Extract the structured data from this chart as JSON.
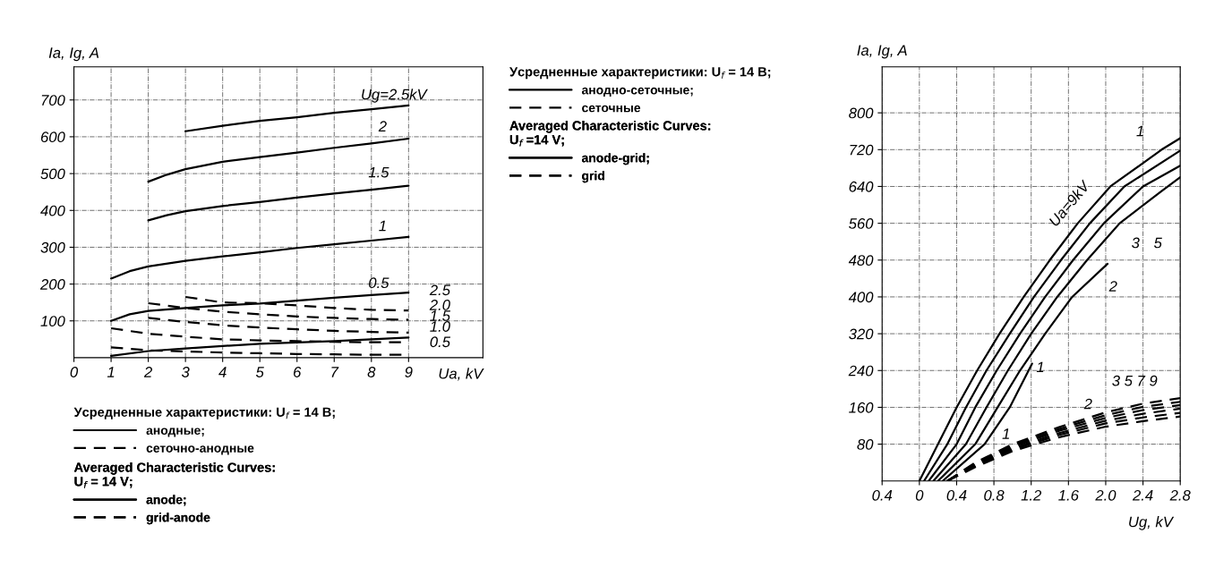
{
  "chart_data": [
    {
      "type": "line",
      "xlabel": "Ua, kV",
      "ylabel": "Ia, Ig, A",
      "xlim": [
        0,
        11
      ],
      "ylim": [
        0,
        790
      ],
      "xticks": [
        0,
        1,
        2,
        3,
        4,
        5,
        6,
        7,
        8,
        9
      ],
      "yticks": [
        100,
        200,
        300,
        400,
        500,
        600,
        700
      ],
      "grid": true,
      "legend": "bottom",
      "legend_title": "Усредненные характеристики: U$_{f}$ = 14 B;",
      "series": [
        {
          "name": "анодные;",
          "color": "#000000",
          "line_style": "solid",
          "x": [
            3,
            4,
            5,
            6,
            7,
            8,
            9
          ],
          "values": [
            615,
            630,
            643,
            653,
            665,
            675,
            685
          ]
        },
        {
          "name": "anode;",
          "color": "#000000",
          "line_style": "solid",
          "x": [
            2,
            2.5,
            3,
            4,
            5,
            6,
            7,
            8,
            9
          ],
          "values": [
            478,
            497,
            512,
            532,
            545,
            557,
            570,
            582,
            595
          ]
        },
        {
          "color": "#000000",
          "line_style": "solid",
          "x": [
            2,
            2.5,
            3,
            4,
            5,
            6,
            7,
            8,
            9
          ],
          "values": [
            373,
            387,
            398,
            412,
            423,
            435,
            446,
            456,
            467
          ]
        },
        {
          "color": "#000000",
          "line_style": "solid",
          "x": [
            1,
            1.5,
            2,
            3,
            4,
            5,
            6,
            7,
            8,
            9
          ],
          "values": [
            215,
            235,
            248,
            263,
            275,
            286,
            298,
            308,
            318,
            328
          ]
        },
        {
          "color": "#000000",
          "line_style": "solid",
          "x": [
            1,
            1.5,
            2,
            3,
            4,
            5,
            6,
            7,
            8,
            9
          ],
          "values": [
            100,
            118,
            127,
            135,
            142,
            147,
            155,
            163,
            170,
            177
          ]
        },
        {
          "color": "#000000",
          "line_style": "solid",
          "x": [
            1,
            2,
            3,
            5,
            7,
            9
          ],
          "values": [
            5,
            18,
            25,
            38,
            45,
            55
          ]
        },
        {
          "name": "сеточно-анодные",
          "color": "#000000",
          "line_style": "dashed",
          "x": [
            3,
            4,
            5,
            6,
            7,
            8,
            9
          ],
          "values": [
            165,
            150,
            148,
            142,
            135,
            130,
            128
          ]
        },
        {
          "name": "grid-anode",
          "color": "#000000",
          "line_style": "dashed",
          "x": [
            2,
            3,
            4,
            5,
            6,
            7,
            8,
            9
          ],
          "values": [
            148,
            135,
            125,
            118,
            112,
            108,
            105,
            103
          ]
        },
        {
          "color": "#000000",
          "line_style": "dashed",
          "x": [
            2,
            3,
            4,
            5,
            6,
            7,
            8,
            9
          ],
          "values": [
            108,
            97,
            88,
            82,
            77,
            73,
            70,
            68
          ]
        },
        {
          "color": "#000000",
          "line_style": "dashed",
          "x": [
            1,
            2,
            3,
            4,
            5,
            6,
            7,
            8,
            9
          ],
          "values": [
            80,
            65,
            57,
            50,
            47,
            45,
            43,
            42,
            42
          ]
        },
        {
          "color": "#000000",
          "line_style": "dashed",
          "x": [
            1,
            2,
            3,
            4,
            5,
            6,
            7,
            8,
            9
          ],
          "values": [
            28,
            20,
            17,
            14,
            12,
            10,
            9,
            8,
            8
          ]
        }
      ],
      "annotations": [
        "Averaged Characteristic Curves:\nU$_{f}$ = 14 V;",
        "Ug=2.5kV",
        "2",
        "1.5",
        "1",
        "0.5",
        "2.5",
        "2.0",
        "1.5",
        "1.0",
        "0.5"
      ]
    },
    {
      "type": "line",
      "xlabel": "Ug, kV",
      "ylabel": "Ia, Ig, A",
      "xlim": [
        -0.4,
        2.8
      ],
      "ylim": [
        0,
        900
      ],
      "xticks": [
        {
          "value": -0.4,
          "label": "0.4"
        },
        0,
        0.4,
        0.8,
        1.2,
        1.6,
        {
          "value": 2.0,
          "label": "2.0"
        },
        2.4,
        2.8
      ],
      "yticks": [
        80,
        160,
        240,
        320,
        400,
        480,
        560,
        640,
        720,
        800
      ],
      "grid": true,
      "legend": "left",
      "legend_title": "Усредненные характеристики: U$_{f}$ = 14 B;",
      "series": [
        {
          "name": "анодно-сеточные;",
          "color": "#000000",
          "line_style": "solid",
          "x": [
            0,
            0.2,
            0.4,
            0.62,
            0.86,
            1.12,
            1.4,
            1.7,
            2.05,
            2.6,
            2.8
          ],
          "values": [
            0,
            80,
            160,
            240,
            320,
            400,
            480,
            560,
            640,
            720,
            745
          ]
        },
        {
          "name": "anode-grid;",
          "color": "#000000",
          "line_style": "solid",
          "x": [
            0.05,
            0.3,
            0.5,
            0.72,
            0.97,
            1.23,
            1.52,
            1.83,
            2.2,
            2.8
          ],
          "values": [
            0,
            80,
            160,
            240,
            320,
            400,
            480,
            560,
            640,
            718
          ]
        },
        {
          "color": "#000000",
          "line_style": "solid",
          "x": [
            0.1,
            0.4,
            0.6,
            0.83,
            1.08,
            1.35,
            1.65,
            1.98,
            2.4,
            2.8
          ],
          "values": [
            0,
            80,
            160,
            240,
            320,
            400,
            480,
            560,
            640,
            685
          ]
        },
        {
          "color": "#000000",
          "line_style": "solid",
          "x": [
            0.15,
            0.5,
            0.72,
            0.95,
            1.2,
            1.48,
            1.8,
            2.15,
            2.6,
            2.8
          ],
          "values": [
            0,
            80,
            160,
            240,
            320,
            400,
            480,
            560,
            630,
            660
          ]
        },
        {
          "color": "#000000",
          "line_style": "solid",
          "x": [
            0.2,
            0.6,
            0.84,
            1.08,
            1.35,
            1.64,
            2.02
          ],
          "values": [
            0,
            80,
            160,
            240,
            320,
            400,
            472
          ]
        },
        {
          "color": "#000000",
          "line_style": "solid",
          "x": [
            0.25,
            0.7,
            0.97,
            1.21
          ],
          "values": [
            0,
            80,
            160,
            255
          ]
        },
        {
          "name": "сеточные",
          "color": "#000000",
          "line_style": "dashed",
          "x": [
            0.3,
            0.6,
            1.0,
            1.5,
            2.0,
            2.4,
            2.8
          ],
          "values": [
            0,
            30,
            65,
            95,
            118,
            130,
            140
          ]
        },
        {
          "name": "grid",
          "color": "#000000",
          "line_style": "dashed",
          "x": [
            0.3,
            0.6,
            1.0,
            1.5,
            2.0,
            2.4,
            2.8
          ],
          "values": [
            0,
            32,
            68,
            100,
            125,
            138,
            148
          ]
        },
        {
          "color": "#000000",
          "line_style": "dashed",
          "x": [
            0.3,
            0.6,
            1.0,
            1.5,
            2.0,
            2.4,
            2.8
          ],
          "values": [
            0,
            34,
            71,
            104,
            131,
            146,
            157
          ]
        },
        {
          "color": "#000000",
          "line_style": "dashed",
          "x": [
            0.3,
            0.6,
            1.0,
            1.5,
            2.0,
            2.4,
            2.8
          ],
          "values": [
            0,
            36,
            74,
            109,
            137,
            154,
            165
          ]
        },
        {
          "color": "#000000",
          "line_style": "dashed",
          "x": [
            0.3,
            0.6,
            1.0,
            1.5,
            2.0,
            2.4,
            2.8
          ],
          "values": [
            0,
            38,
            77,
            113,
            143,
            161,
            172
          ]
        },
        {
          "color": "#000000",
          "line_style": "dashed",
          "x": [
            0.3,
            0.6,
            1.0,
            1.5,
            2.0,
            2.4,
            2.8
          ],
          "values": [
            0,
            40,
            80,
            117,
            149,
            168,
            180
          ]
        }
      ],
      "annotations": [
        "Averaged Characteristic Curves:\nU$_{f}$ =14 V;",
        "Ua=9kV",
        "1",
        "3",
        "5",
        "2",
        "1",
        "2",
        "3 5 7 9",
        "1"
      ]
    }
  ]
}
